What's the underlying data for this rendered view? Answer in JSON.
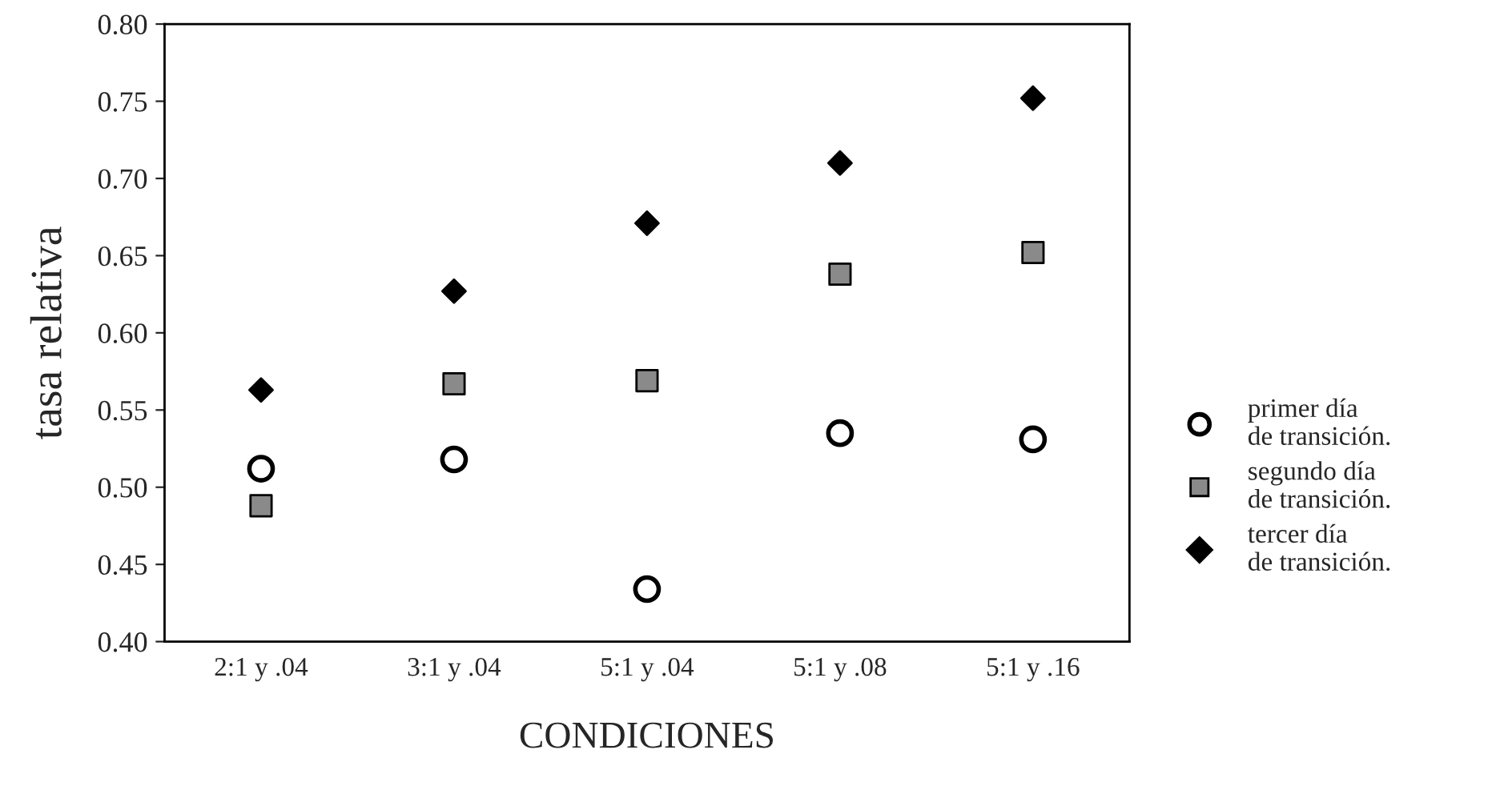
{
  "chart_data": {
    "type": "scatter",
    "xlabel": "CONDICIONES",
    "ylabel": "tasa relativa",
    "categories": [
      "2:1 y .04",
      "3:1 y .04",
      "5:1 y .04",
      "5:1 y .08",
      "5:1 y .16"
    ],
    "ylim": [
      0.4,
      0.8
    ],
    "yticks": [
      {
        "value": 0.4,
        "label": "0.40"
      },
      {
        "value": 0.45,
        "label": "0.45"
      },
      {
        "value": 0.5,
        "label": "0.50"
      },
      {
        "value": 0.55,
        "label": "0.55"
      },
      {
        "value": 0.6,
        "label": "0.60"
      },
      {
        "value": 0.65,
        "label": "0.65"
      },
      {
        "value": 0.7,
        "label": "0.70"
      },
      {
        "value": 0.75,
        "label": "0.75"
      },
      {
        "value": 0.8,
        "label": "0.80"
      }
    ],
    "grid": false,
    "legend": "right",
    "series": [
      {
        "name": "primer día\nde transición.",
        "color": "#000000",
        "marker": "circle",
        "values": [
          0.512,
          0.518,
          0.434,
          0.535,
          0.531
        ]
      },
      {
        "name": "segundo día\nde transición.",
        "color": "#8a8a8a",
        "marker": "square",
        "values": [
          0.488,
          0.567,
          0.569,
          0.638,
          0.652
        ]
      },
      {
        "name": "tercer día\nde transición.",
        "color": "#000000",
        "marker": "diamond",
        "values": [
          0.563,
          0.627,
          0.671,
          0.71,
          0.752
        ]
      }
    ]
  }
}
